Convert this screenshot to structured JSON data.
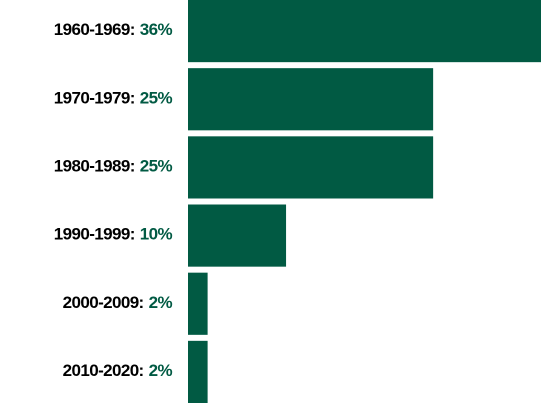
{
  "chart_data": {
    "type": "bar",
    "orientation": "horizontal",
    "categories": [
      "1960-1969:",
      "1970-1979:",
      "1980-1989:",
      "1990-1999:",
      "2000-2009:",
      "2010-2020:"
    ],
    "values": [
      36,
      25,
      25,
      10,
      2,
      2
    ],
    "value_labels": [
      "36%",
      "25%",
      "25%",
      "10%",
      "2%",
      "2%"
    ],
    "color": "#015a43",
    "label_color": "#000000",
    "value_label_color": "#015a43",
    "xlim": [
      0,
      36
    ]
  }
}
